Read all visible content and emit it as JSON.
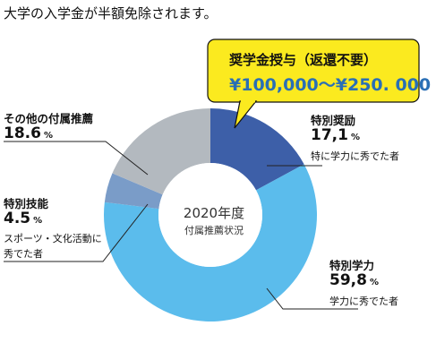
{
  "page": {
    "title": "大学の入学金が半額免除されます。"
  },
  "callout": {
    "line1": "奨学金授与（返還不要）",
    "line2": "¥100,000〜¥250. 000"
  },
  "center": {
    "year": "2020年度",
    "subtitle": "付属推薦状況"
  },
  "colors": {
    "dark_blue": "#3d5fa8",
    "light_blue": "#5bbcec",
    "steel_blue": "#7a9cc8",
    "gray": "#b3b9bf",
    "callout_yellow": "#fbea1f"
  },
  "chart_data": {
    "type": "pie",
    "title": "2020年度",
    "subtitle": "付属推薦状況",
    "categories": [
      "特別奨励",
      "特別学力",
      "特別技能",
      "その他の付属推薦"
    ],
    "value_labels": [
      "17,1",
      "59,8",
      "4.5",
      "18.6"
    ],
    "unit": "%",
    "values": [
      17.1,
      59.8,
      4.5,
      18.6
    ],
    "descriptions": [
      "特に学力に秀でた者",
      "学力に秀でた者",
      "スポーツ・文化活動に 秀でた者",
      ""
    ],
    "colors": [
      "#3d5fa8",
      "#5bbcec",
      "#7a9cc8",
      "#b3b9bf"
    ],
    "donut": true
  }
}
